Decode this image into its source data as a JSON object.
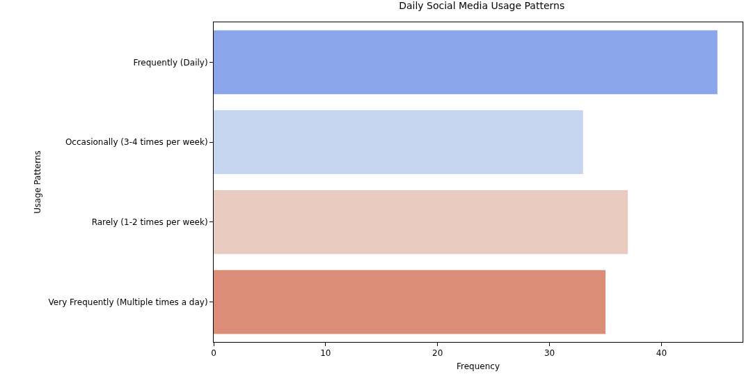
{
  "chart_data": {
    "type": "bar",
    "orientation": "horizontal",
    "title": "Daily Social Media Usage Patterns",
    "xlabel": "Frequency",
    "ylabel": "Usage Patterns",
    "categories": [
      "Frequently (Daily)",
      "Occasionally (3-4 times per week)",
      "Rarely (1-2 times per week)",
      "Very Frequently (Multiple times a day)"
    ],
    "values": [
      45,
      33,
      37,
      35
    ],
    "colors": [
      "#8aa5ea",
      "#c6d5f0",
      "#e9ccbf",
      "#dc8d77"
    ],
    "xlim": [
      0,
      47.25
    ],
    "xticks": [
      0,
      10,
      20,
      30,
      40
    ],
    "grid": false
  }
}
